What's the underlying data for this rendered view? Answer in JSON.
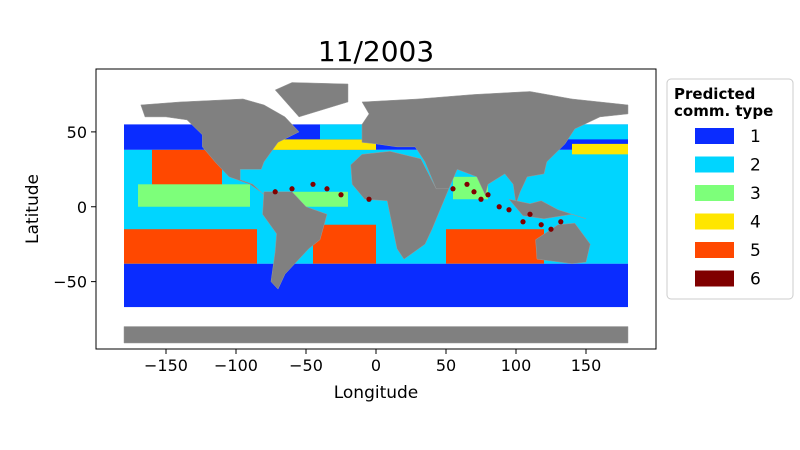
{
  "chart_data": {
    "type": "scatter",
    "title": "11/2003",
    "xlabel": "Longitude",
    "ylabel": "Latitude",
    "xlim": [
      -200,
      200
    ],
    "ylim": [
      -95,
      92
    ],
    "xticks": [
      -150,
      -100,
      -50,
      0,
      50,
      100,
      150
    ],
    "xtick_labels": [
      "−150",
      "−100",
      "−50",
      "0",
      "50",
      "100",
      "150"
    ],
    "yticks": [
      -50,
      0,
      50
    ],
    "ytick_labels": [
      "−50",
      "0",
      "50"
    ],
    "legend": {
      "title_lines": [
        "Predicted",
        "comm. type"
      ],
      "placement": "outside-right",
      "entries": [
        {
          "label": "1",
          "color": "#0a2cff"
        },
        {
          "label": "2",
          "color": "#00d5ff"
        },
        {
          "label": "3",
          "color": "#7dff7a"
        },
        {
          "label": "4",
          "color": "#ffe600"
        },
        {
          "label": "5",
          "color": "#ff4800"
        },
        {
          "label": "6",
          "color": "#800000"
        }
      ]
    },
    "land_color": "#808080",
    "grid": false
  }
}
